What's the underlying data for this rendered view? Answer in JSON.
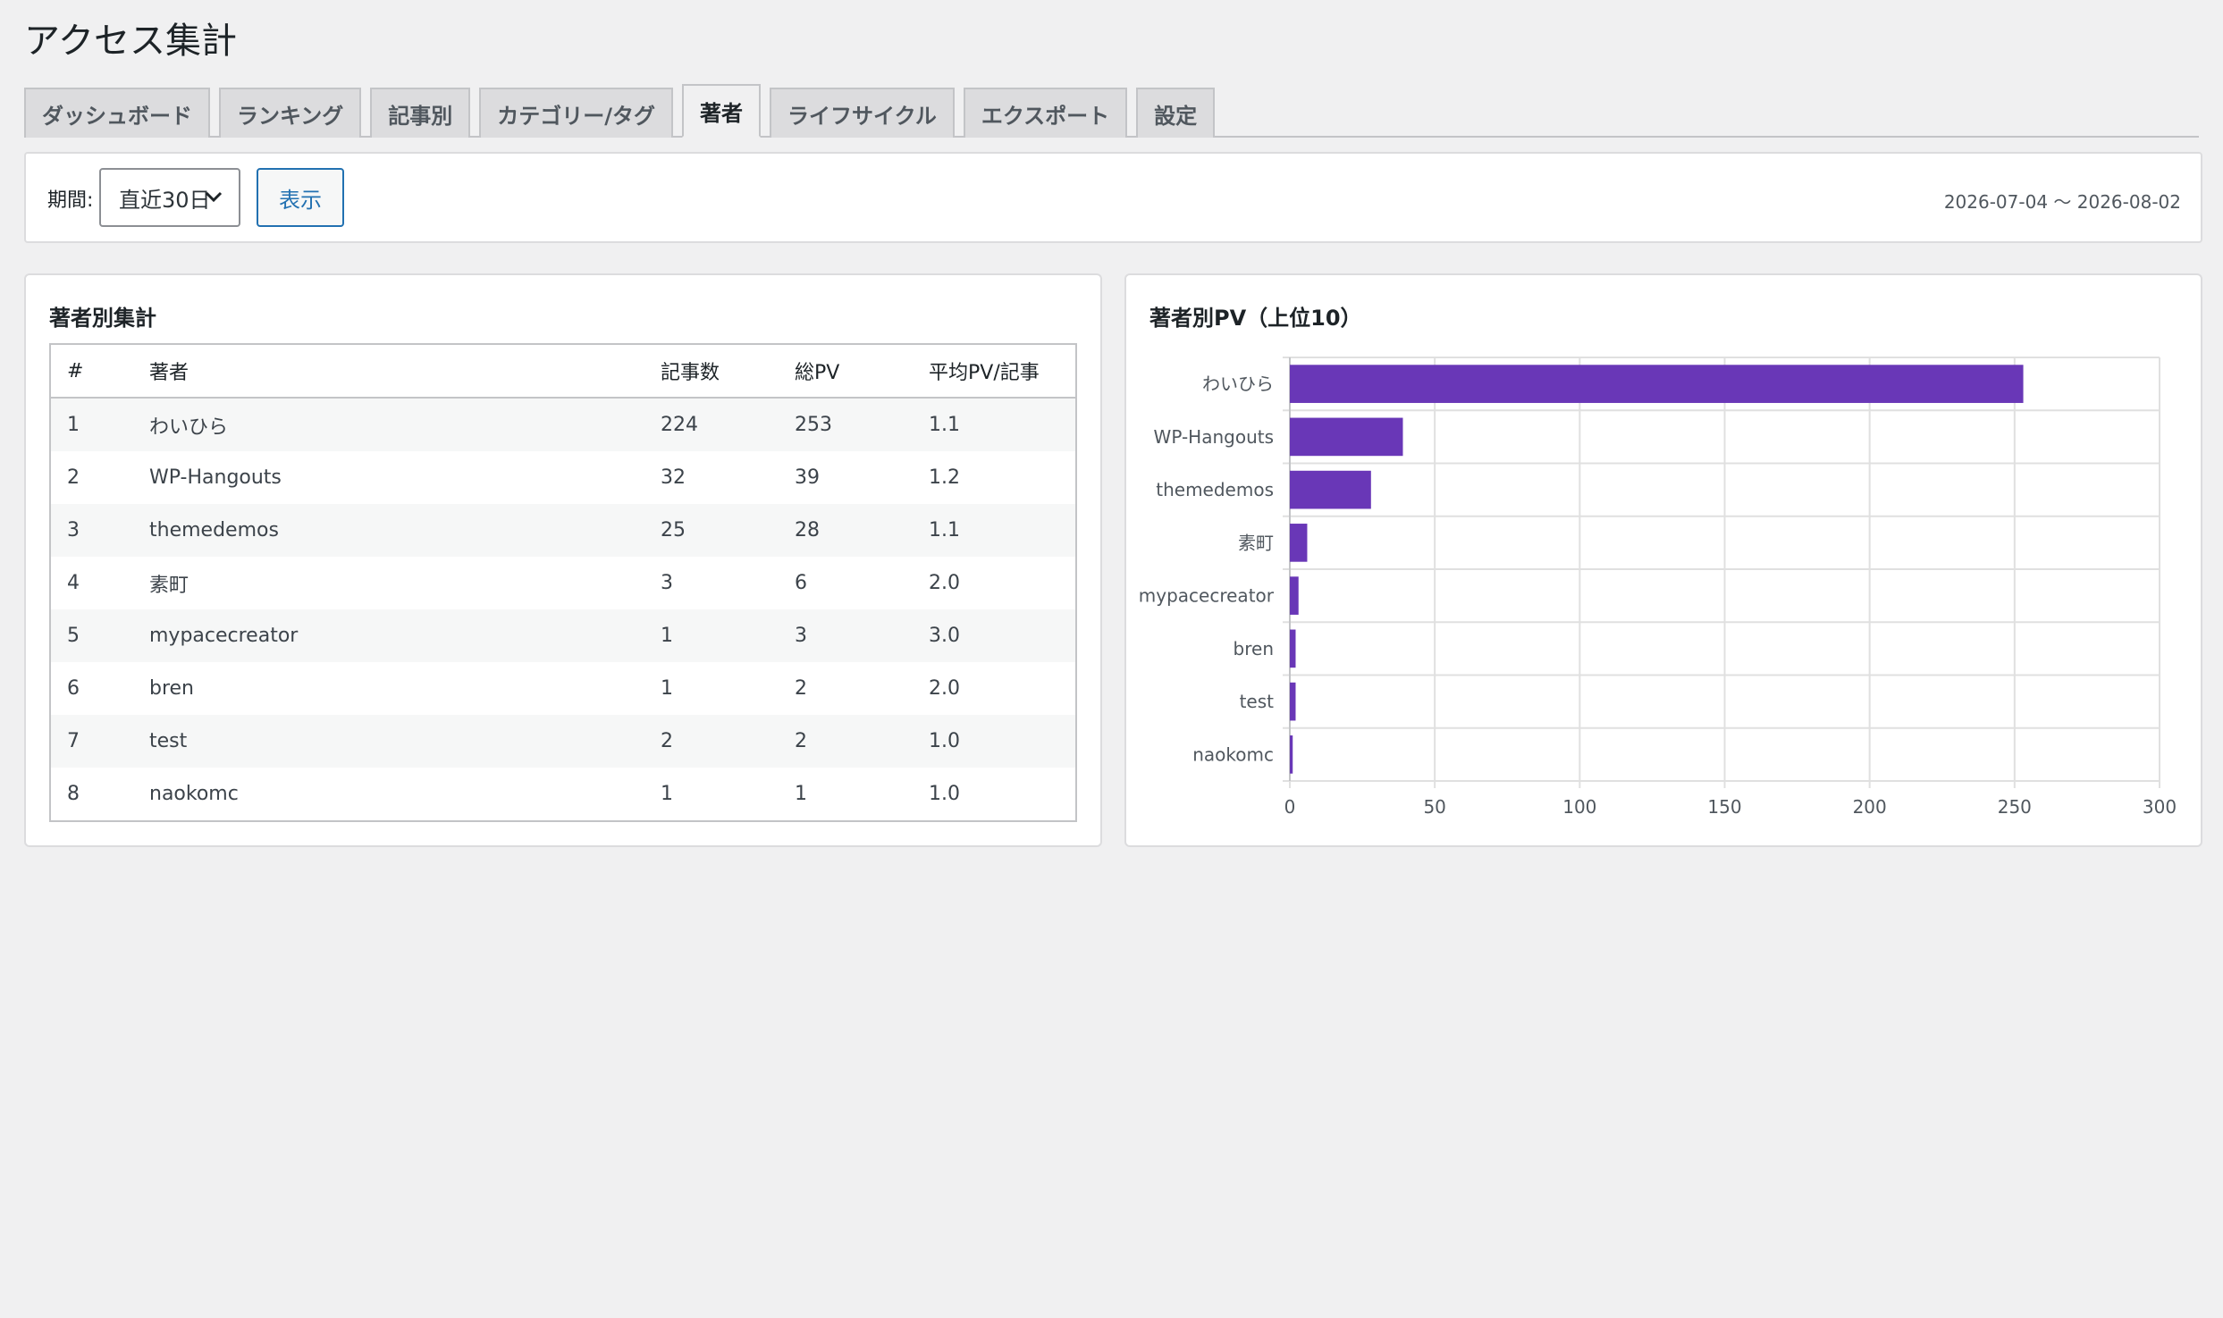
{
  "page": {
    "title": "アクセス集計"
  },
  "tabs": [
    {
      "label": "ダッシュボード",
      "active": false
    },
    {
      "label": "ランキング",
      "active": false
    },
    {
      "label": "記事別",
      "active": false
    },
    {
      "label": "カテゴリー/タグ",
      "active": false
    },
    {
      "label": "著者",
      "active": true
    },
    {
      "label": "ライフサイクル",
      "active": false
    },
    {
      "label": "エクスポート",
      "active": false
    },
    {
      "label": "設定",
      "active": false
    }
  ],
  "filter": {
    "label": "期間:",
    "period_value": "直近30日",
    "show_label": "表示",
    "date_range": "2026-07-04 〜 2026-08-02"
  },
  "table_card": {
    "title": "著者別集計",
    "headers": [
      "#",
      "著者",
      "記事数",
      "総PV",
      "平均PV/記事"
    ],
    "rows": [
      [
        "1",
        "わいひら",
        "224",
        "253",
        "1.1"
      ],
      [
        "2",
        "WP-Hangouts",
        "32",
        "39",
        "1.2"
      ],
      [
        "3",
        "themedemos",
        "25",
        "28",
        "1.1"
      ],
      [
        "4",
        "素町",
        "3",
        "6",
        "2.0"
      ],
      [
        "5",
        "mypacecreator",
        "1",
        "3",
        "3.0"
      ],
      [
        "6",
        "bren",
        "1",
        "2",
        "2.0"
      ],
      [
        "7",
        "test",
        "2",
        "2",
        "1.0"
      ],
      [
        "8",
        "naokomc",
        "1",
        "1",
        "1.0"
      ]
    ]
  },
  "chart_card": {
    "title": "著者別PV（上位10）"
  },
  "colors": {
    "bar": "#6937b7",
    "accent": "#2271b1"
  },
  "chart_data": {
    "type": "bar",
    "orientation": "horizontal",
    "title": "著者別PV（上位10）",
    "categories": [
      "わいひら",
      "WP-Hangouts",
      "themedemos",
      "素町",
      "mypacecreator",
      "bren",
      "test",
      "naokomc"
    ],
    "values": [
      253,
      39,
      28,
      6,
      3,
      2,
      2,
      1
    ],
    "xlim": [
      0,
      300
    ],
    "xticks": [
      0,
      50,
      100,
      150,
      200,
      250,
      300
    ],
    "grid": true
  }
}
